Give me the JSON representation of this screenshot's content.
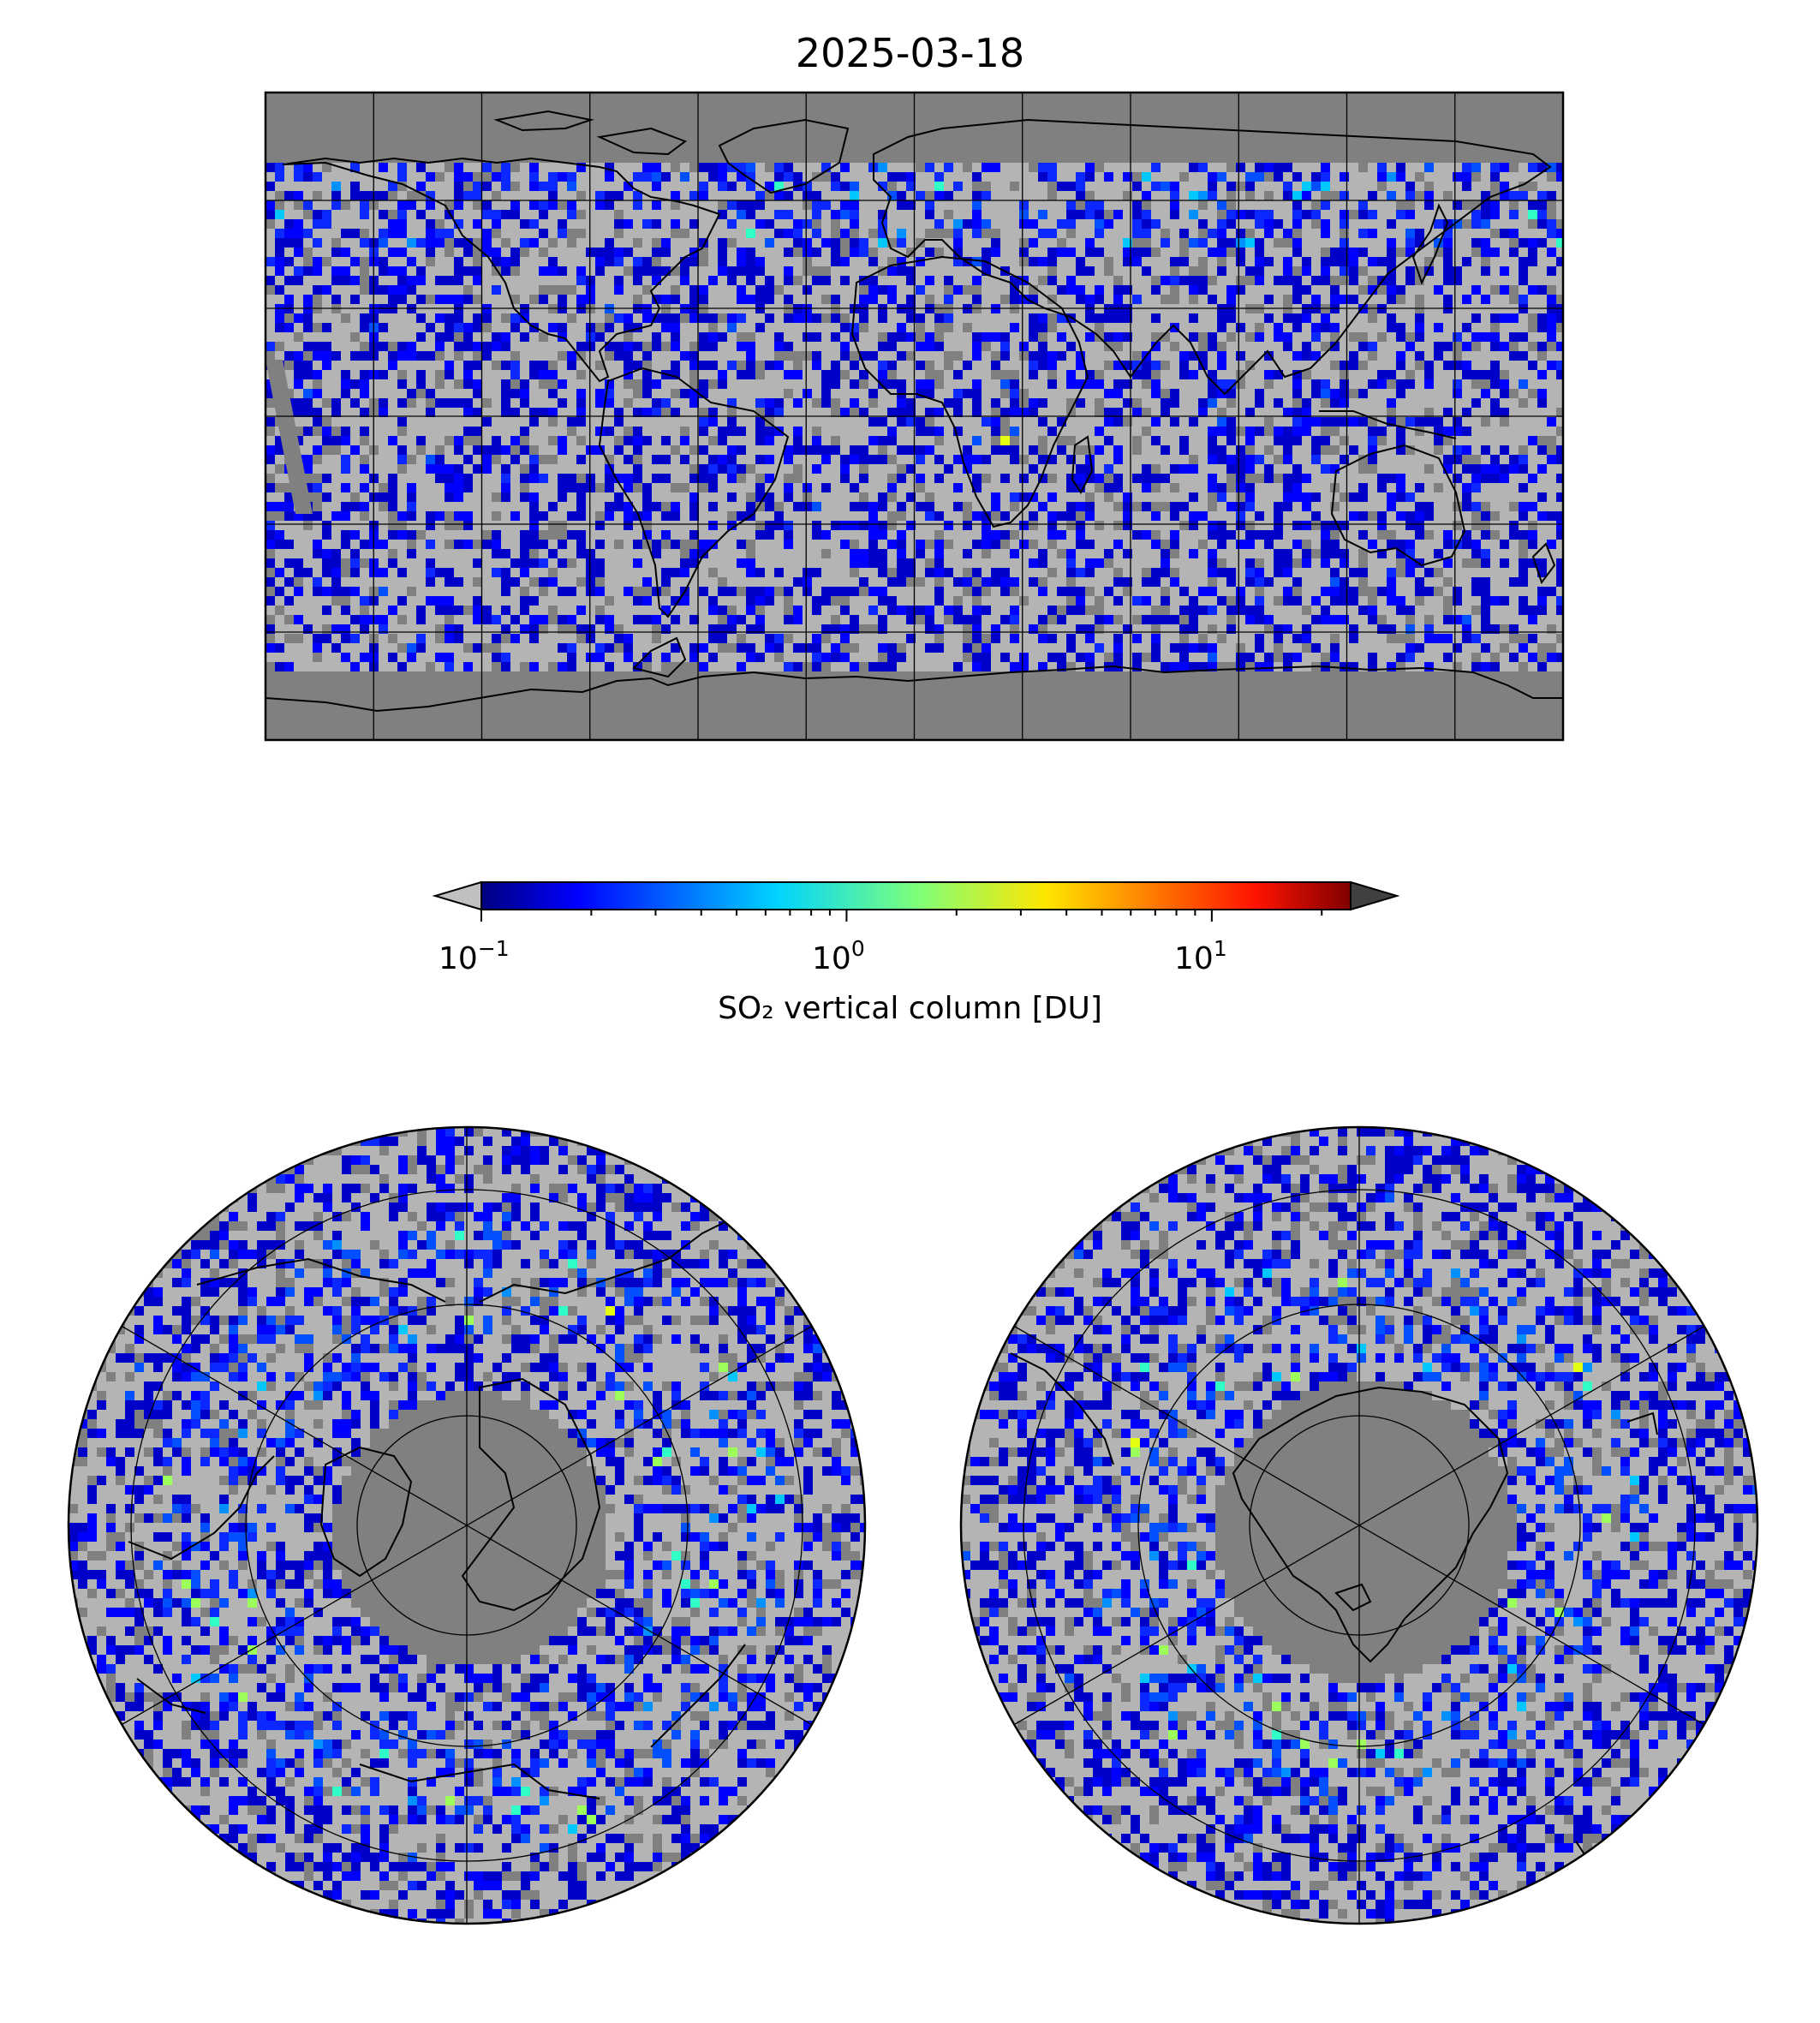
{
  "title": "2025-03-18",
  "colorbar": {
    "label": "SO₂ vertical column [DU]",
    "scale": "log",
    "range": [
      0.1,
      24
    ],
    "ticks": [
      {
        "base": "10",
        "exp": "−1"
      },
      {
        "base": "10",
        "exp": "0"
      },
      {
        "base": "10",
        "exp": "1"
      }
    ],
    "colormap": "jet",
    "under_color": "#c0c0c0",
    "over_color": "#404040"
  },
  "colors": {
    "no_data": "#808080",
    "low_values": "#b4b4b4",
    "coastline": "#000000",
    "gridline": "#000000"
  },
  "panels": [
    {
      "projection": "plate-carree",
      "extent": "global",
      "gridlines_deg": 30
    },
    {
      "projection": "north-polar-stereographic",
      "gridlines": true
    },
    {
      "projection": "south-polar-stereographic",
      "gridlines": true
    }
  ]
}
